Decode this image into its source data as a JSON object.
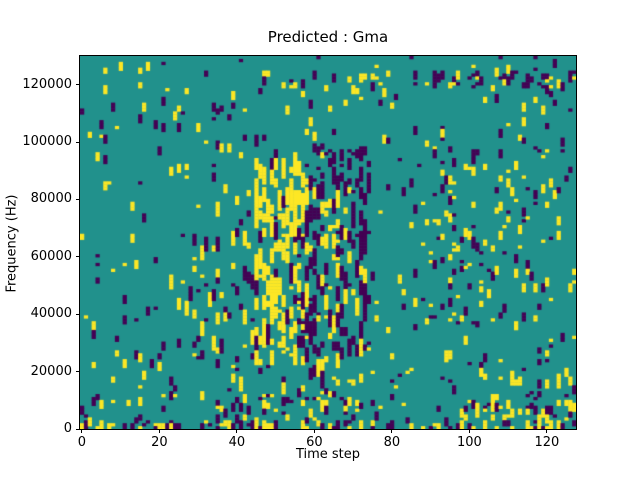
{
  "title": "Predicted : Gma",
  "figure": {
    "background": "#ffffff",
    "axes_border_color": "#000000"
  },
  "chart_data": {
    "type": "heatmap",
    "title": "Predicted : Gma",
    "xlabel": "Time step",
    "ylabel": "Frequency (Hz)",
    "x_range": [
      0,
      128
    ],
    "y_range_hz": [
      0,
      130000
    ],
    "grid": {
      "cols": 128,
      "rows": 128
    },
    "x_ticks": [
      0,
      20,
      40,
      60,
      80,
      100,
      120
    ],
    "y_ticks": [
      0,
      20000,
      40000,
      60000,
      80000,
      100000,
      120000
    ],
    "legend": "none",
    "gridlines": false,
    "colormap": {
      "name": "viridis-3-level",
      "low_purple": "#440154",
      "mid_teal": "#21918c",
      "high_yellow": "#fde725"
    },
    "features": [
      "background is mostly mid teal cells with sparse scattered short vertical yellow and purple dashes",
      "dense cluster of tall vertical yellow streaks around time steps 45-58 between ~25000 and ~93000 Hz",
      "dense vertical purple streaks around time steps 57-75 between ~20000 and ~98000 Hz",
      "horizontal dashed line of purple (with some yellow) cells near 120000 Hz for time steps beyond ~85",
      "dense mixed yellow/purple band along the bottom rows near 0 Hz across all time steps",
      "moderate mixed scatter in the 3000-27000 Hz band and in the mid-left region (time 20-46)"
    ],
    "pattern": {
      "seed": 42,
      "base": {
        "py": 0.013,
        "pp": 0.013,
        "run": 3
      },
      "regions": [
        {
          "t": [
            0,
            128
          ],
          "f": [
            0,
            3
          ],
          "py": 0.13,
          "pp": 0.13,
          "run": 2
        },
        {
          "t": [
            0,
            128
          ],
          "f": [
            3,
            27
          ],
          "py": 0.028,
          "pp": 0.028,
          "run": 3
        },
        {
          "t": [
            86,
            128
          ],
          "f": [
            117,
            123
          ],
          "py": 0.05,
          "pp": 0.16,
          "run": 2
        },
        {
          "t": [
            40,
            86
          ],
          "f": [
            117,
            123
          ],
          "py": 0.025,
          "pp": 0.05,
          "run": 2
        },
        {
          "t": [
            45,
            59
          ],
          "f": [
            24,
            93
          ],
          "py": 0.17,
          "pp": 0.025,
          "run": 7
        },
        {
          "t": [
            57,
            63
          ],
          "f": [
            18,
            98
          ],
          "py": 0.03,
          "pp": 0.13,
          "run": 6
        },
        {
          "t": [
            62,
            67
          ],
          "f": [
            38,
            83
          ],
          "py": 0.14,
          "pp": 0.03,
          "run": 6
        },
        {
          "t": [
            65,
            75
          ],
          "f": [
            24,
            98
          ],
          "py": 0.02,
          "pp": 0.11,
          "run": 6
        },
        {
          "t": [
            88,
            122
          ],
          "f": [
            35,
            105
          ],
          "py": 0.03,
          "pp": 0.03,
          "run": 3
        },
        {
          "t": [
            22,
            47
          ],
          "f": [
            28,
            70
          ],
          "py": 0.035,
          "pp": 0.035,
          "run": 5
        },
        {
          "t": [
            100,
            128
          ],
          "f": [
            0,
            10
          ],
          "py": 0.1,
          "pp": 0.08,
          "run": 2
        },
        {
          "t": [
            40,
            80
          ],
          "f": [
            0,
            12
          ],
          "py": 0.06,
          "pp": 0.06,
          "run": 3
        }
      ]
    }
  }
}
